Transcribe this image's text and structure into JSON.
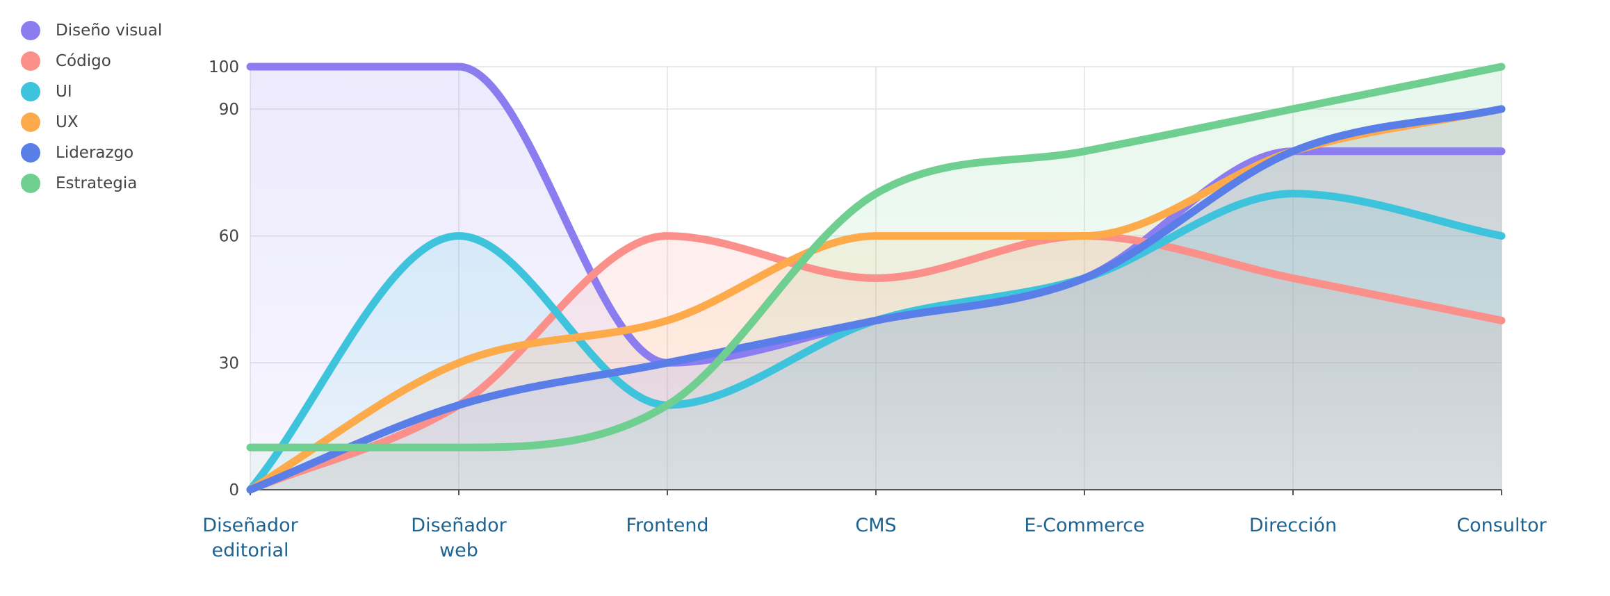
{
  "chart_data": {
    "type": "area",
    "categories": [
      "Diseñador\neditorial",
      "Diseñador\nweb",
      "Frontend",
      "CMS",
      "E-Commerce",
      "Dirección",
      "Consultor"
    ],
    "y_ticks": [
      0,
      30,
      60,
      90,
      100
    ],
    "ylim": [
      0,
      100
    ],
    "grid": true,
    "legend_position": "top-left",
    "series": [
      {
        "name": "Diseño visual",
        "color": "#8b7cf0",
        "values": [
          100,
          100,
          30,
          40,
          50,
          80,
          80
        ]
      },
      {
        "name": "Código",
        "color": "#fb8f89",
        "values": [
          0,
          20,
          60,
          50,
          60,
          50,
          40
        ]
      },
      {
        "name": "UI",
        "color": "#3dc3dc",
        "values": [
          0,
          60,
          20,
          40,
          50,
          70,
          60
        ]
      },
      {
        "name": "UX",
        "color": "#fcaa4a",
        "values": [
          0,
          30,
          40,
          60,
          60,
          80,
          90
        ]
      },
      {
        "name": "Liderazgo",
        "color": "#5a7ee8",
        "values": [
          0,
          20,
          30,
          40,
          50,
          80,
          90
        ]
      },
      {
        "name": "Estrategia",
        "color": "#6fcf90",
        "values": [
          10,
          10,
          20,
          70,
          80,
          90,
          100
        ]
      }
    ]
  }
}
